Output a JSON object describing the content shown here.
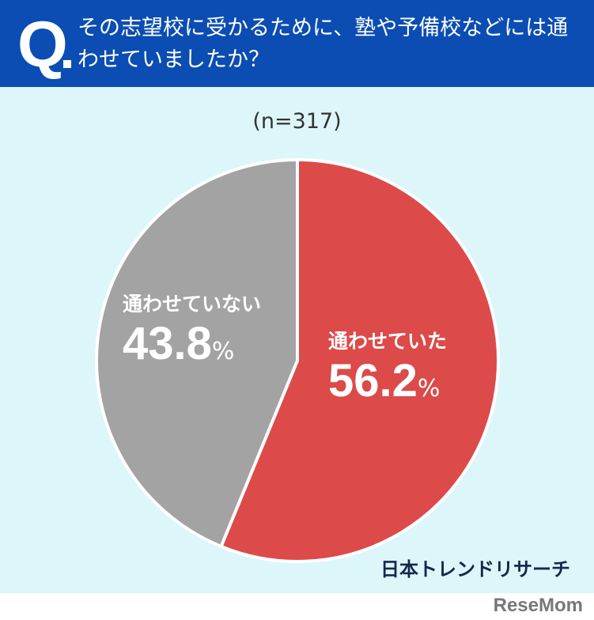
{
  "header": {
    "q_label": "Q",
    "question": "その志望校に受かるために、塾や予備校などには通わせていましたか？"
  },
  "chart_data": {
    "type": "pie",
    "title": "その志望校に受かるために、塾や予備校などには通わせていましたか？",
    "sample_note": "(n=317)",
    "unit": "%",
    "slices": [
      {
        "label": "通わせていた",
        "value": 56.2,
        "display": "56.2",
        "color": "#dc4a4a"
      },
      {
        "label": "通わせていない",
        "value": 43.8,
        "display": "43.8",
        "color": "#a4a3a3"
      }
    ],
    "start_angle": "12 o'clock",
    "direction": "clockwise"
  },
  "footer": {
    "source": "日本トレンドリサーチ",
    "watermark": "ReseMom"
  }
}
